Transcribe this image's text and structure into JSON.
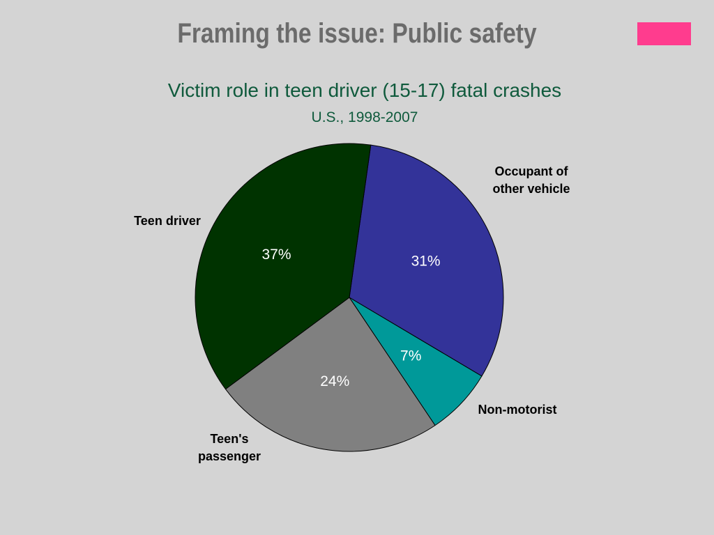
{
  "slide": {
    "title": "Framing the issue: Public safety",
    "accent_color": "#ff3c8e"
  },
  "chart_data": {
    "type": "pie",
    "title": "Victim role in teen driver (15-17) fatal crashes",
    "subtitle": "U.S., 1998-2007",
    "slices": [
      {
        "label": "Occupant of other vehicle",
        "value": 31,
        "value_label": "31%",
        "color": "#333399"
      },
      {
        "label": "Non-motorist",
        "value": 7,
        "value_label": "7%",
        "color": "#009999"
      },
      {
        "label": "Teen's passenger",
        "value": 24,
        "value_label": "24%",
        "color": "#808080"
      },
      {
        "label": "Teen driver",
        "value": 37,
        "value_label": "37%",
        "color": "#003300"
      }
    ]
  }
}
